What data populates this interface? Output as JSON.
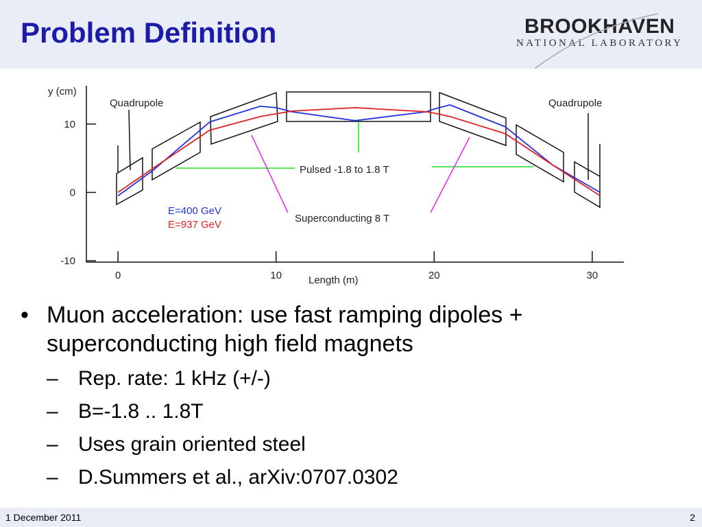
{
  "header": {
    "title": "Problem Definition",
    "logo": {
      "name": "BROOKHAVEN",
      "subtitle": "NATIONAL LABORATORY"
    }
  },
  "chart_data": {
    "type": "line",
    "ylabel": "y  (cm)",
    "xlabel": "Length (m)",
    "x": [
      0,
      2.2,
      5.8,
      9,
      10,
      11,
      15,
      19.5,
      20,
      21,
      24.5,
      27.5,
      30.5
    ],
    "series": [
      {
        "name": "E=400 GeV",
        "color": "#2233dd",
        "values": [
          -0.5,
          3.2,
          10.3,
          12.6,
          12.4,
          11.8,
          10.5,
          11.8,
          12.2,
          12.8,
          9.6,
          4,
          0
        ]
      },
      {
        "name": "E=937 GeV",
        "color": "#e02020",
        "values": [
          0,
          3.5,
          9.1,
          11.1,
          11.5,
          11.9,
          12.4,
          11.8,
          11.6,
          11.1,
          8.6,
          4,
          -0.5
        ]
      }
    ],
    "xlim": [
      -2,
      32
    ],
    "ylim": [
      -10.2,
      15.6
    ],
    "xticks": [
      0,
      10,
      20,
      30
    ],
    "yticks": [
      -10,
      0,
      10
    ],
    "grid": false,
    "annotations": [
      "Quadrupole",
      "Quadrupole",
      "Pulsed -1.8 to 1.8 T",
      "Superconducting  8 T"
    ]
  },
  "bullets": [
    {
      "text": "Muon acceleration: use fast ramping dipoles + superconducting high field magnets",
      "items": [
        "Rep. rate: 1 kHz (+/-)",
        "B=-1.8 .. 1.8T",
        "Uses grain oriented steel",
        "D.Summers et al., arXiv:0707.0302"
      ]
    }
  ],
  "footer": {
    "date": "1 December 2011",
    "page": "2"
  }
}
